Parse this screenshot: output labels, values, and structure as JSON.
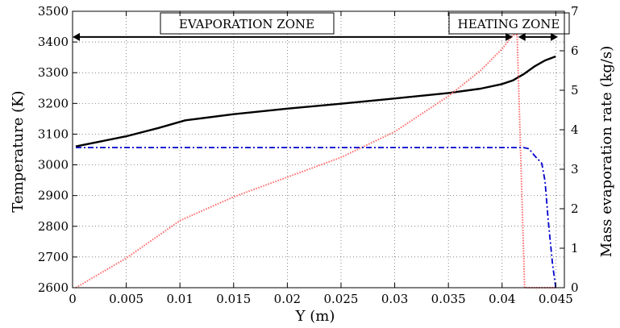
{
  "chart_data": {
    "type": "line",
    "xlabel": "Y (m)",
    "ylabel_left": "Temperature (K)",
    "ylabel_right": "Mass evaporation rate (kg/s)",
    "xlim": [
      0,
      0.0458
    ],
    "ylim_left": [
      2600,
      3500
    ],
    "ylim_right": [
      0,
      7
    ],
    "xticks": [
      0,
      0.005,
      0.01,
      0.015,
      0.02,
      0.025,
      0.03,
      0.035,
      0.04,
      0.045
    ],
    "xtick_labels": [
      "0",
      "0.005",
      "0.01",
      "0.015",
      "0.02",
      "0.025",
      "0.03",
      "0.035",
      "0.04",
      "0.045"
    ],
    "yticks_left": [
      2600,
      2700,
      2800,
      2900,
      3000,
      3100,
      3200,
      3300,
      3400,
      3500
    ],
    "yticks_right": [
      0,
      1,
      2,
      3,
      4,
      5,
      6,
      7
    ],
    "grid": true,
    "series": [
      {
        "axis": "left",
        "style": "solid",
        "color": "#000000",
        "x": [
          0.0003,
          0.005,
          0.008,
          0.0105,
          0.015,
          0.02,
          0.025,
          0.03,
          0.035,
          0.038,
          0.04,
          0.041,
          0.042,
          0.043,
          0.044,
          0.045
        ],
        "y": [
          3060,
          3093,
          3120,
          3145,
          3165,
          3183,
          3199,
          3216,
          3234,
          3248,
          3263,
          3275,
          3295,
          3320,
          3340,
          3353
        ]
      },
      {
        "axis": "right",
        "style": "dotted",
        "color": "#ff7070",
        "x": [
          0.0003,
          0.005,
          0.01,
          0.015,
          0.02,
          0.025,
          0.03,
          0.035,
          0.038,
          0.04,
          0.041,
          0.0414,
          0.0421,
          0.0425,
          0.045
        ],
        "y": [
          0,
          0.75,
          1.7,
          2.3,
          2.8,
          3.3,
          3.95,
          4.85,
          5.5,
          6.05,
          6.4,
          6.4,
          0,
          0,
          0
        ]
      },
      {
        "axis": "right",
        "style": "dashdot",
        "color": "#0000cc",
        "x": [
          0.0003,
          0.042,
          0.0425,
          0.043,
          0.0437,
          0.044,
          0.0443,
          0.0447,
          0.045
        ],
        "y": [
          3.55,
          3.55,
          3.52,
          3.35,
          3.15,
          2.7,
          1.7,
          0.6,
          0
        ]
      }
    ],
    "annotations": {
      "evaporation_zone": "EVAPORATION ZONE",
      "heating_zone": "HEATING ZONE",
      "evaporation_span": [
        0,
        0.041
      ],
      "heating_span": [
        0.0415,
        0.0452
      ],
      "arrow_level_right": 6.35
    }
  }
}
